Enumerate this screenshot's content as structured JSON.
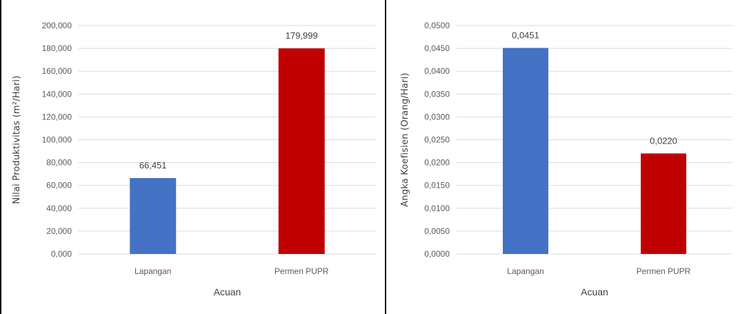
{
  "chart_data": [
    {
      "type": "bar",
      "categories": [
        "Lapangan",
        "Permen PUPR"
      ],
      "values": [
        66.451,
        179.999
      ],
      "value_labels": [
        "66,451",
        "179,999"
      ],
      "colors": [
        "#4472C4",
        "#C00000"
      ],
      "ylim": [
        0,
        200
      ],
      "yticks": [
        "0,000",
        "20,000",
        "40,000",
        "60,000",
        "80,000",
        "100,000",
        "120,000",
        "140,000",
        "160,000",
        "180,000",
        "200,000"
      ],
      "ylabel": "Nilai Produktivitas (m²/Hari)",
      "xlabel": "Acuan",
      "grid": true
    },
    {
      "type": "bar",
      "categories": [
        "Lapangan",
        "Permen PUPR"
      ],
      "values": [
        0.0451,
        0.022
      ],
      "value_labels": [
        "0,0451",
        "0,0220"
      ],
      "colors": [
        "#4472C4",
        "#C00000"
      ],
      "ylim": [
        0,
        0.05
      ],
      "yticks": [
        "0,0000",
        "0,0050",
        "0,0100",
        "0,0150",
        "0,0200",
        "0,0250",
        "0,0300",
        "0,0350",
        "0,0400",
        "0,0450",
        "0,0500"
      ],
      "ylabel": "Angka Koefisien (Orang/Hari)",
      "xlabel": "Acuan",
      "grid": true
    }
  ]
}
